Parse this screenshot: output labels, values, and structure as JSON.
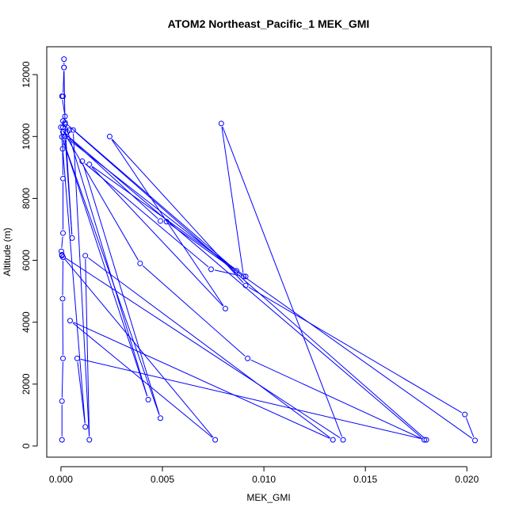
{
  "chart_data": {
    "type": "line",
    "title": "ATOM2 Northeast_Pacific_1 MEK_GMI",
    "xlabel": "MEK_GMI",
    "ylabel": "Altitude (m)",
    "xlim": [
      -0.0007,
      0.0212
    ],
    "ylim": [
      -360,
      12900
    ],
    "x_ticks": [
      0.0,
      0.005,
      0.01,
      0.015,
      0.02
    ],
    "x_tick_labels": [
      "0.000",
      "0.005",
      "0.010",
      "0.015",
      "0.020"
    ],
    "y_ticks": [
      0,
      2000,
      4000,
      6000,
      8000,
      10000,
      12000
    ],
    "y_tick_labels": [
      "0",
      "2000",
      "4000",
      "6000",
      "8000",
      "10000",
      "12000"
    ],
    "grid": false,
    "legend": "none",
    "series": [
      {
        "color": "#0000ff",
        "marker": "open-circle",
        "points": [
          [
            5e-05,
            200
          ],
          [
            5e-05,
            1450
          ],
          [
            0.0001,
            2830
          ],
          [
            8e-05,
            4760
          ],
          [
            0.0001,
            6100
          ],
          [
            5e-05,
            6180
          ],
          [
            2e-05,
            6290
          ],
          [
            0.0001,
            6880
          ],
          [
            0.0001,
            8640
          ],
          [
            8e-05,
            9600
          ],
          [
            0.0002,
            10000
          ],
          [
            0.0003,
            10150
          ],
          [
            0.0004,
            10200
          ],
          [
            0.0002,
            10400
          ],
          [
            0.0001,
            10300
          ],
          [
            0.0001,
            10500
          ],
          [
            0.0002,
            10650
          ],
          [
            5e-05,
            11300
          ],
          [
            0.0001,
            11300
          ],
          [
            0.00015,
            12230
          ],
          [
            0.00015,
            12500
          ],
          [
            0.00015,
            12230
          ],
          [
            0.0002,
            10400
          ],
          [
            0.00055,
            6720
          ],
          [
            0.0002,
            10000
          ],
          [
            0.00865,
            5660
          ],
          [
            0.0002,
            10450
          ],
          [
            0.0043,
            1500
          ],
          [
            5e-05,
            9990
          ],
          [
            0.0049,
            900
          ],
          [
            0.00105,
            9200
          ],
          [
            0.0074,
            5710
          ],
          [
            0.009,
            5480
          ],
          [
            0.0079,
            10420
          ],
          [
            0.0139,
            200
          ],
          [
            5e-05,
            6150
          ],
          [
            0.0076,
            200
          ],
          [
            0.00045,
            4050
          ],
          [
            0.0134,
            200
          ],
          [
            0.0012,
            6150
          ],
          [
            0.0014,
            200
          ],
          [
            0.0006,
            10210
          ],
          [
            0.018,
            200
          ],
          [
            0.0008,
            2830
          ],
          [
            0.0012,
            620
          ],
          [
            0.0,
            10300
          ],
          [
            0.0039,
            5900
          ],
          [
            0.0092,
            2830
          ],
          [
            0.0179,
            200
          ],
          [
            0.0001,
            10150
          ],
          [
            0.0049,
            7270
          ],
          [
            0.0052,
            7250
          ],
          [
            0.0204,
            180
          ],
          [
            0.0199,
            1020
          ],
          [
            0.0091,
            5190
          ],
          [
            0.0024,
            10000
          ],
          [
            0.0081,
            4440
          ],
          [
            0.0014,
            9100
          ],
          [
            0.0091,
            5480
          ]
        ]
      }
    ]
  }
}
